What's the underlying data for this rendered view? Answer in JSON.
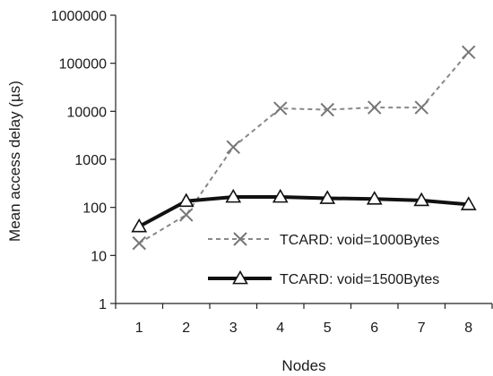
{
  "chart_data": {
    "type": "line",
    "title": "",
    "xlabel": "Nodes",
    "ylabel": "Mean access delay (µs)",
    "x": [
      1,
      2,
      3,
      4,
      5,
      6,
      7,
      8
    ],
    "y_scale": "log",
    "ylim": [
      1,
      1000000
    ],
    "yticks": [
      "1",
      "10",
      "100",
      "1000",
      "10000",
      "100000",
      "1000000"
    ],
    "grid": false,
    "legend_position": "bottom-right",
    "series": [
      {
        "name": "TCARD: void=1000Bytes",
        "marker": "x",
        "line_style": "dashed",
        "color": "#888888",
        "values": [
          18,
          70,
          1800,
          11500,
          10800,
          12000,
          12000,
          170000
        ]
      },
      {
        "name": "TCARD: void=1500Bytes",
        "marker": "triangle",
        "line_style": "solid",
        "color": "#111111",
        "values": [
          40,
          135,
          165,
          165,
          155,
          150,
          140,
          115
        ]
      }
    ]
  }
}
